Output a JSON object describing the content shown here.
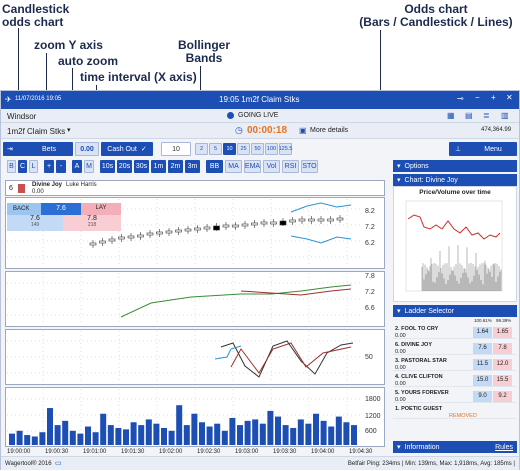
{
  "callouts": {
    "candlestick": "Candlestick\nodds chart",
    "zoom_y": "zoom Y axis",
    "auto_zoom": "auto zoom",
    "time_interval": "time interval (X axis)",
    "bollinger": "Bollinger\nBands",
    "odds_chart": "Odds chart\n(Bars / Candlestick / Lines)"
  },
  "titlebar": {
    "date": "11/07/2016 19:05",
    "title": "19:05 1m2f Claim Stks"
  },
  "header": {
    "venue": "Windsor",
    "status": "GOING LIVE",
    "market": "1m2f Claim Stks",
    "countdown": "00:00:18",
    "more": "More details",
    "matched": "474,364.99"
  },
  "toolbar": {
    "bets": "Bets",
    "value": "0.00",
    "cashout": "Cash Out",
    "stake": "10",
    "stakes": [
      "2",
      "5",
      "10",
      "25",
      "50",
      "100",
      "125.5"
    ],
    "menu": "Menu"
  },
  "chart_buttons": {
    "types": [
      "B",
      "C",
      "L"
    ],
    "zoom": [
      "+",
      "-"
    ],
    "auto": [
      "A",
      "M"
    ],
    "intervals": [
      "10s",
      "20s",
      "30s",
      "1m",
      "2m",
      "3m"
    ],
    "indicators": [
      "BB",
      "MA",
      "EMA",
      "Vol",
      "RSI",
      "STO"
    ]
  },
  "runner": {
    "num": "6",
    "name": "Divine Joy",
    "jockey": "Luke Harris",
    "pl": "0.00",
    "back_label": "BACK",
    "back_top": "7.6",
    "lay_label": "LAY",
    "back_price": "7.6",
    "back_size": "149",
    "lay_price": "7.8",
    "lay_size": "218"
  },
  "yticks": {
    "p1": [
      "8.2",
      "7.2",
      "6.2"
    ],
    "p2": [
      "7.8",
      "7.2",
      "6.6"
    ],
    "p3": [
      "50"
    ],
    "p4": [
      "1800",
      "1200",
      "600"
    ]
  },
  "xticks": [
    "19:00:00",
    "19:00:30",
    "19:01:00",
    "19:01:30",
    "19:02:00",
    "19:02:30",
    "19:03:00",
    "19:03:30",
    "19:04:00",
    "19:04:30"
  ],
  "right": {
    "options": "Options",
    "chart_head": "Chart: Divine Joy",
    "chart_title": "Price/Volume over time",
    "ladder_head": "Ladder Selector",
    "col1": "100.61%",
    "col2": "99.39%",
    "info": "Information",
    "rules": "Rules",
    "runners": [
      {
        "name": "2. FOOL TO CRY",
        "pl": "0.00",
        "back": "1.64",
        "lay": "1.65"
      },
      {
        "name": "6. DIVINE JOY",
        "pl": "0.00",
        "back": "7.6",
        "lay": "7.8"
      },
      {
        "name": "3. PASTORAL STAR",
        "pl": "0.00",
        "back": "11.5",
        "lay": "12.0"
      },
      {
        "name": "4. CLIVE CLIFTON",
        "pl": "0.00",
        "back": "15.0",
        "lay": "15.5"
      },
      {
        "name": "5. YOURS FOREVER",
        "pl": "0.00",
        "back": "9.0",
        "lay": "9.2"
      },
      {
        "name": "1. POETIC GUEST",
        "pl": "",
        "back": "",
        "lay": "",
        "removed": "REMOVED"
      }
    ]
  },
  "footer": {
    "left": "Wagertool® 2016",
    "right": "Betfair Ping: 234ms | Min: 139ms, Max: 1,918ms, Avg: 185ms |"
  },
  "chart_data": {
    "type": "bar",
    "values": [
      400,
      500,
      350,
      300,
      450,
      1300,
      700,
      850,
      500,
      400,
      650,
      450,
      1100,
      700,
      600,
      550,
      800,
      700,
      900,
      750,
      600,
      500,
      1400,
      700,
      1100,
      800,
      650,
      750,
      500,
      950,
      700,
      850,
      900,
      750,
      1200,
      1000,
      700,
      600,
      900,
      750,
      1100,
      850,
      650,
      1000,
      800,
      700
    ],
    "ylim": [
      0,
      1900
    ]
  }
}
